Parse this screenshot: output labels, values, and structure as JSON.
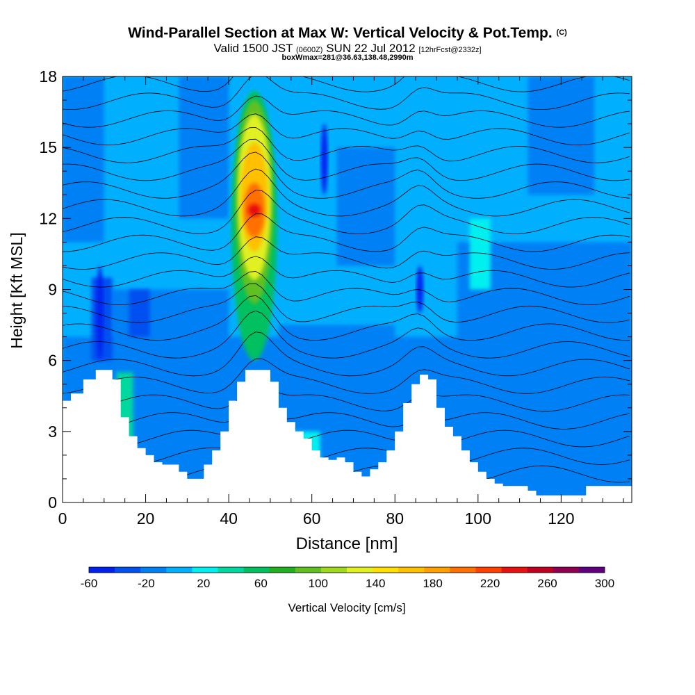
{
  "header": {
    "title": "Wind-Parallel Section at Max W: Vertical Velocity & Pot.Temp.",
    "copyright": "(C)",
    "valid_a": "Valid 1500 JST",
    "valid_b": "(0600Z)",
    "valid_c": "SUN 22 Jul 2012",
    "valid_d": "[12hrFcst@2332z]",
    "boxinfo": "boxWmax=281@36.63,138.48,2990m"
  },
  "chart_data": {
    "type": "heatmap",
    "xlabel": "Distance [nm]",
    "ylabel": "Height [Kft MSL]",
    "xlim": [
      0,
      137
    ],
    "ylim": [
      0,
      18
    ],
    "x_ticks": [
      0,
      20,
      40,
      60,
      80,
      100,
      120
    ],
    "y_ticks": [
      0,
      3,
      6,
      9,
      12,
      15,
      18
    ],
    "colorbar": {
      "label": "Vertical Velocity [cm/s]",
      "min": -60,
      "max": 300,
      "step": 20,
      "tick_labels": [
        -60,
        -20,
        20,
        60,
        100,
        140,
        180,
        220,
        260,
        300
      ],
      "colors": [
        "#0020f0",
        "#0050f0",
        "#0080f5",
        "#00b0ff",
        "#00f0f0",
        "#00d8a0",
        "#00c060",
        "#20b020",
        "#60c020",
        "#a0d820",
        "#e0f020",
        "#ffe000",
        "#ffc000",
        "#ffa000",
        "#ff7000",
        "#ff4000",
        "#e81010",
        "#c00020",
        "#900050",
        "#600080"
      ]
    },
    "terrain_profile": {
      "x": [
        0,
        2,
        5,
        8,
        10,
        12,
        14,
        16,
        18,
        20,
        22,
        24,
        26,
        28,
        30,
        32,
        34,
        36,
        38,
        40,
        42,
        44,
        46,
        48,
        50,
        52,
        54,
        56,
        58,
        60,
        62,
        64,
        66,
        68,
        70,
        72,
        74,
        76,
        78,
        80,
        82,
        84,
        86,
        88,
        90,
        92,
        94,
        96,
        98,
        100,
        102,
        104,
        106,
        108,
        110,
        112,
        114,
        116,
        118,
        120,
        122,
        124,
        126,
        128,
        130,
        132,
        134,
        137
      ],
      "height_kft": [
        4.3,
        4.6,
        5.2,
        5.6,
        5.6,
        5.2,
        3.6,
        2.8,
        2.3,
        2.0,
        1.7,
        1.6,
        1.6,
        1.3,
        1.0,
        1.0,
        1.6,
        2.2,
        3.0,
        4.3,
        5.1,
        5.6,
        5.6,
        5.6,
        5.1,
        4.0,
        3.4,
        3.0,
        2.7,
        2.2,
        1.9,
        1.8,
        1.9,
        1.7,
        1.3,
        1.1,
        1.4,
        1.7,
        2.2,
        3.0,
        4.2,
        5.0,
        5.4,
        5.2,
        4.0,
        3.2,
        2.8,
        2.2,
        1.7,
        1.3,
        1.0,
        0.8,
        0.7,
        0.7,
        0.7,
        0.5,
        0.3,
        0.3,
        0.3,
        0.3,
        0.3,
        0.3,
        0.7,
        0.7,
        0.7,
        0.7,
        0.7,
        0.7
      ]
    },
    "max_updraft_core": {
      "x": 46.5,
      "top_kft": 17.0,
      "base_kft": 6.0,
      "max_value_cm_s": 281
    },
    "secondary_downdrafts": [
      {
        "x": 9,
        "from_kft": 6.0,
        "to_kft": 10.0
      },
      {
        "x": 63,
        "from_kft": 13.0,
        "to_kft": 16.0
      },
      {
        "x": 86,
        "from_kft": 8.0,
        "to_kft": 10.0
      }
    ]
  }
}
